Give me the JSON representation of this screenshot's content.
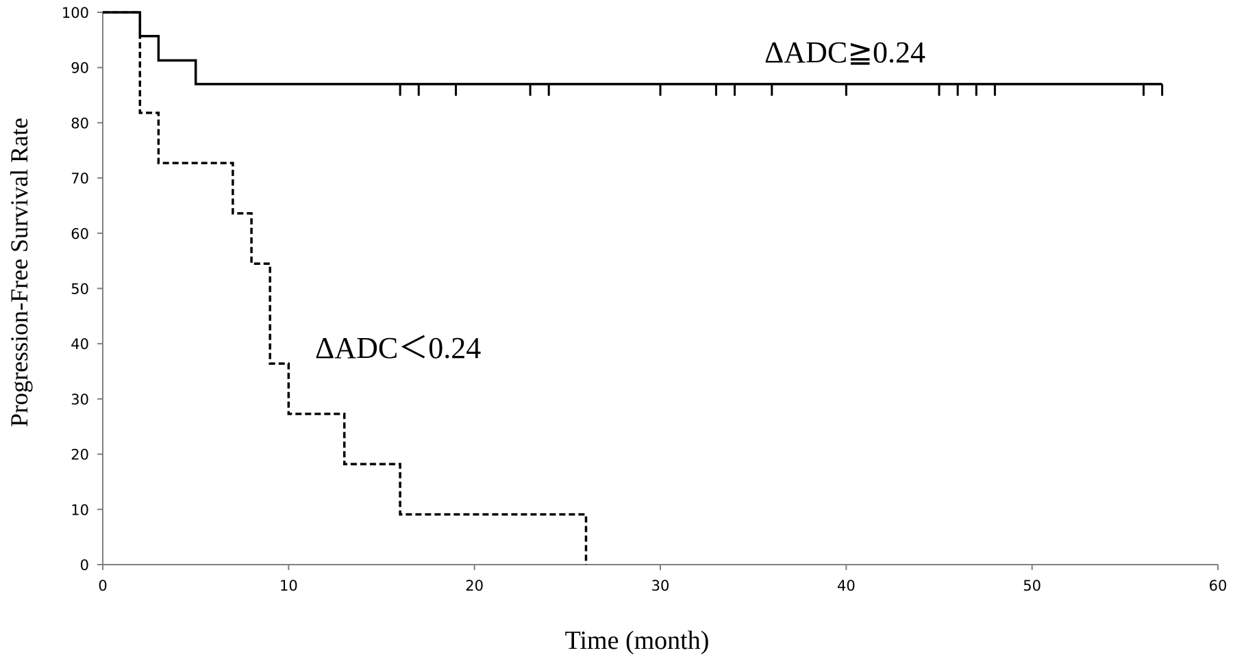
{
  "chart_data": {
    "type": "line",
    "title": "",
    "xlabel": "Time (month)",
    "ylabel": "Progression-Free Survival Rate",
    "xlim": [
      0,
      60
    ],
    "ylim": [
      0,
      100
    ],
    "xticks": [
      0,
      10,
      20,
      30,
      40,
      50,
      60
    ],
    "yticks": [
      0,
      10,
      20,
      30,
      40,
      50,
      60,
      70,
      80,
      90,
      100
    ],
    "grid": false,
    "step": true,
    "series": [
      {
        "name": "ΔADC≧0.24",
        "line_style": "solid",
        "color": "#000000",
        "x": [
          0,
          2,
          2,
          3,
          3,
          5,
          5,
          57
        ],
        "y": [
          100,
          100,
          95.7,
          95.7,
          91.3,
          91.3,
          87.0,
          87.0
        ],
        "censored": [
          16,
          17,
          19,
          23,
          24,
          30,
          33,
          34,
          36,
          40,
          45,
          46,
          47,
          48,
          56,
          57
        ]
      },
      {
        "name": "ΔADC＜0.24",
        "line_style": "dashed",
        "color": "#000000",
        "x": [
          0,
          2,
          2,
          3,
          3,
          7,
          7,
          8,
          8,
          9,
          9,
          10,
          10,
          13,
          13,
          16,
          16,
          26,
          26
        ],
        "y": [
          100,
          100,
          81.8,
          81.8,
          72.7,
          72.7,
          63.6,
          63.6,
          54.5,
          54.5,
          36.4,
          36.4,
          27.3,
          27.3,
          18.2,
          18.2,
          9.1,
          9.1,
          0
        ],
        "censored": []
      }
    ]
  }
}
